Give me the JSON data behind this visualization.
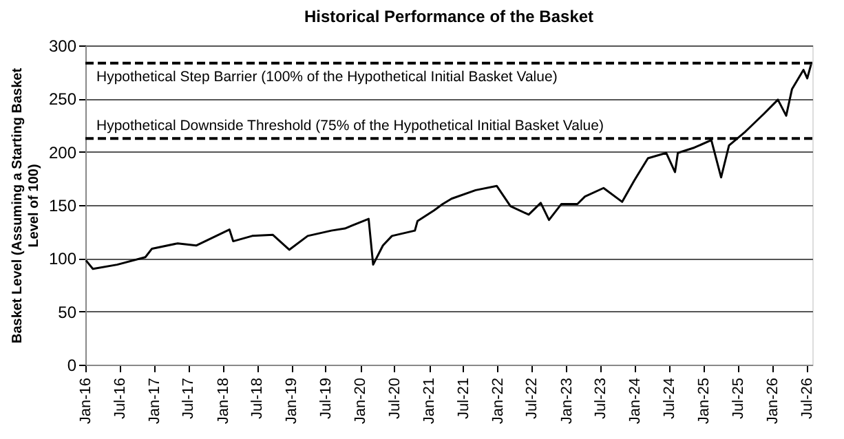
{
  "chart_data": {
    "type": "line",
    "title": "Historical Performance of the Basket",
    "ylabel": "Basket Level (Assuming a Starting Basket Level of 100)",
    "xlim": [
      "2016-01-01",
      "2026-08-01"
    ],
    "ylim": [
      0,
      300
    ],
    "yticks": [
      0,
      50,
      100,
      150,
      200,
      250,
      300
    ],
    "grid": "y",
    "line_style": "solid",
    "marker": "none",
    "xticks": [
      {
        "value": "2016-01",
        "label": "Jan-16"
      },
      {
        "value": "2016-07",
        "label": "Jul-16"
      },
      {
        "value": "2017-01",
        "label": "Jan-17"
      },
      {
        "value": "2017-07",
        "label": "Jul-17"
      },
      {
        "value": "2018-01",
        "label": "Jan-18"
      },
      {
        "value": "2018-07",
        "label": "Jul-18"
      },
      {
        "value": "2019-01",
        "label": "Jan-19"
      },
      {
        "value": "2019-07",
        "label": "Jul-19"
      },
      {
        "value": "2020-01",
        "label": "Jan-20"
      },
      {
        "value": "2020-07",
        "label": "Jul-20"
      },
      {
        "value": "2021-01",
        "label": "Jan-21"
      },
      {
        "value": "2021-07",
        "label": "Jul-21"
      },
      {
        "value": "2022-01",
        "label": "Jan-22"
      },
      {
        "value": "2022-07",
        "label": "Jul-22"
      },
      {
        "value": "2023-01",
        "label": "Jan-23"
      },
      {
        "value": "2023-07",
        "label": "Jul-23"
      },
      {
        "value": "2024-01",
        "label": "Jan-24"
      },
      {
        "value": "2024-07",
        "label": "Jul-24"
      },
      {
        "value": "2025-01",
        "label": "Jan-25"
      },
      {
        "value": "2025-07",
        "label": "Jul-25"
      },
      {
        "value": "2026-01",
        "label": "Jan-26"
      },
      {
        "value": "2026-07",
        "label": "Jul-26"
      }
    ],
    "ref_lines": [
      {
        "axis": "y",
        "value": 283.4,
        "label": "Hypothetical Step Barrier (100% of the Hypothetical Initial Basket Value)",
        "color": "#000000",
        "line_style": "dashed"
      },
      {
        "axis": "y",
        "value": 212.5,
        "label": "Hypothetical Downside Threshold (75% of the Hypothetical Initial Basket Value)",
        "color": "#000000",
        "line_style": "dashed"
      }
    ],
    "series": [
      {
        "color": "#000000",
        "x": [
          "2016-01-04",
          "2016-02-10",
          "2016-06-18",
          "2016-11-15",
          "2016-12-20",
          "2017-05-06",
          "2017-08-12",
          "2018-02-05",
          "2018-02-25",
          "2018-06-06",
          "2018-09-24",
          "2018-12-20",
          "2019-03-28",
          "2019-08-01",
          "2019-10-12",
          "2020-02-15",
          "2020-03-10",
          "2020-05-01",
          "2020-06-18",
          "2020-10-18",
          "2020-11-01",
          "2021-01-28",
          "2021-03-15",
          "2021-05-01",
          "2021-09-06",
          "2021-12-27",
          "2022-03-10",
          "2022-06-15",
          "2022-08-18",
          "2022-10-01",
          "2022-12-06",
          "2023-03-01",
          "2023-04-10",
          "2023-07-18",
          "2023-10-25",
          "2023-12-28",
          "2024-03-10",
          "2024-06-15",
          "2024-08-01",
          "2024-08-16",
          "2024-11-12",
          "2025-02-10",
          "2025-04-03",
          "2025-05-15",
          "2025-08-10",
          "2025-11-18",
          "2026-01-30",
          "2026-03-15",
          "2026-04-15",
          "2026-06-15",
          "2026-07-05",
          "2026-07-25"
        ],
        "values": [
          98,
          90,
          94,
          101,
          109,
          114,
          112,
          127,
          116,
          121,
          122,
          108,
          121,
          126,
          128,
          137,
          94,
          112,
          121,
          126,
          135,
          145,
          151,
          156,
          164,
          168,
          149,
          141,
          152,
          136,
          151,
          151,
          158,
          166,
          153,
          173,
          194,
          199,
          181,
          199,
          204,
          211,
          176,
          206,
          219,
          236,
          249,
          234,
          259,
          277,
          269,
          282
        ]
      }
    ]
  }
}
